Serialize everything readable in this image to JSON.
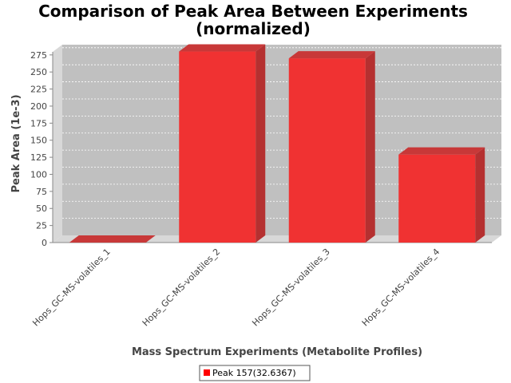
{
  "chart_data": {
    "type": "bar",
    "title_lines": [
      "Comparison of Peak Area Between Experiments",
      "(normalized)"
    ],
    "xlabel": "Mass Spectrum Experiments (Metabolite Profiles)",
    "ylabel": "Peak Area (1e-3)",
    "categories": [
      "Hops_GC-MS-volatiles_1",
      "Hops_GC-MS-volatiles_2",
      "Hops_GC-MS-volatiles_3",
      "Hops_GC-MS-volatiles_4"
    ],
    "series": [
      {
        "name": "Peak 157(32.6367)",
        "values": [
          0,
          280,
          270,
          129
        ],
        "color": "#ff0000"
      }
    ],
    "ylim": [
      0,
      290
    ],
    "yticks": [
      0,
      25,
      50,
      75,
      100,
      125,
      150,
      175,
      200,
      225,
      250,
      275
    ],
    "grid": true,
    "legend_position": "bottom-center",
    "colors": {
      "plot_background": "#c0c0c0",
      "wall": "#d8d8d8",
      "bar": "#ff0000"
    }
  }
}
